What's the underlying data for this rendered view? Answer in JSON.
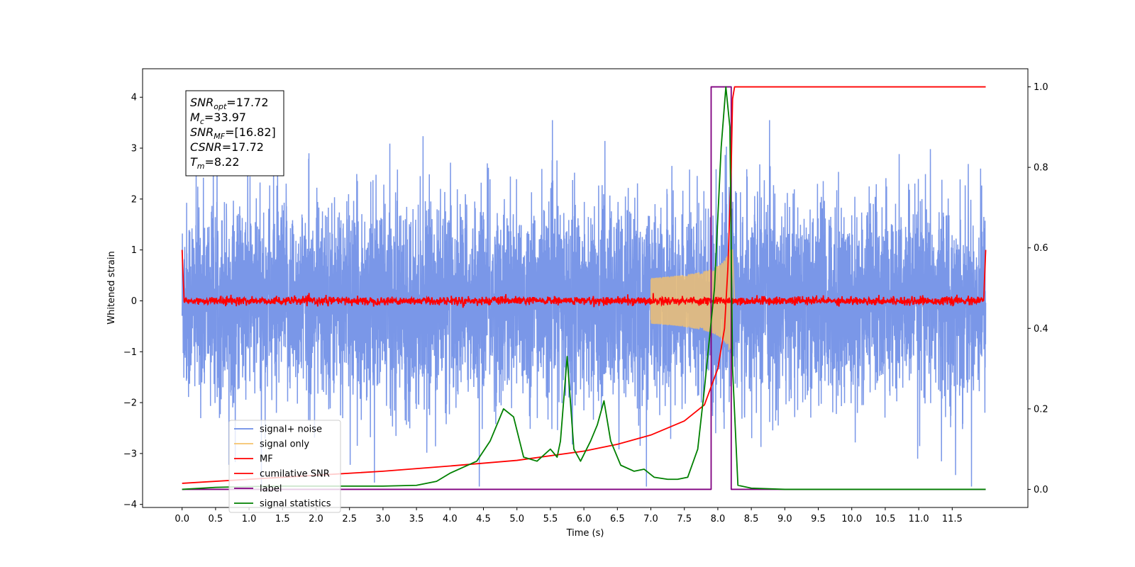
{
  "chart_data": {
    "type": "line",
    "xlabel": "Time (s)",
    "ylabel": "Whitened strain",
    "xlim": [
      -0.59,
      12.63
    ],
    "ylim_left": [
      -4.06,
      4.56
    ],
    "ylim_right": [
      -0.045,
      1.045
    ],
    "x_ticks": [
      "0.0",
      "0.5",
      "1.0",
      "1.5",
      "2.0",
      "2.5",
      "3.0",
      "3.5",
      "4.0",
      "4.5",
      "5.0",
      "5.5",
      "6.0",
      "6.5",
      "7.0",
      "7.5",
      "8.0",
      "8.5",
      "9.0",
      "9.5",
      "10.0",
      "10.5",
      "11.0",
      "11.5"
    ],
    "y_ticks_left": [
      "4",
      "3",
      "2",
      "1",
      "0",
      "−1",
      "−2",
      "−3",
      "−4"
    ],
    "y_ticks_right": [
      "1.0",
      "0.8",
      "0.6",
      "0.4",
      "0.2",
      "0.0"
    ],
    "grid": false,
    "legend_position": "lower left",
    "info_box": {
      "lines": [
        {
          "base": "SNR",
          "sub": "opt",
          "rest": "=17.72"
        },
        {
          "base": "M",
          "sub": "c",
          "rest": "=33.97"
        },
        {
          "base": "SNR",
          "sub": "MF",
          "rest": "=[16.82]"
        },
        {
          "base": "CSNR",
          "sub": "",
          "rest": "=17.72"
        },
        {
          "base": "T",
          "sub": "m",
          "rest": "=8.22"
        }
      ]
    },
    "series": [
      {
        "name": "signal+ noise",
        "color": "#6b8ce6",
        "axis": "left",
        "description_values": {
          "x_range": [
            0.0,
            12.0
          ],
          "typical_range": [
            -2.0,
            2.0
          ],
          "max": 3.55,
          "min": -3.65
        }
      },
      {
        "name": "signal only",
        "color": "#f5c26b",
        "axis": "left",
        "x_range": [
          7.0,
          8.25
        ],
        "amplitude_peak": 1.0
      },
      {
        "name": "MF",
        "color": "#ff0000",
        "axis": "left",
        "x_range": [
          0.0,
          12.0
        ],
        "baseline": 0.0,
        "noise_amplitude": 0.08,
        "start_value": 1.0,
        "end_value": 1.0
      },
      {
        "name": "cumilative SNR",
        "color": "#ff0000",
        "axis": "right",
        "x": [
          0.0,
          1.0,
          2.0,
          3.0,
          4.0,
          5.0,
          6.0,
          6.5,
          7.0,
          7.5,
          7.8,
          8.0,
          8.1,
          8.15,
          8.2,
          8.22,
          8.25,
          12.0
        ],
        "y": [
          0.015,
          0.025,
          0.035,
          0.045,
          0.058,
          0.072,
          0.095,
          0.112,
          0.135,
          0.17,
          0.21,
          0.3,
          0.4,
          0.55,
          0.8,
          0.97,
          1.0,
          1.0
        ]
      },
      {
        "name": "label",
        "color": "#800080",
        "axis": "right",
        "x": [
          0.0,
          7.9,
          7.9,
          8.2,
          8.2,
          12.0
        ],
        "y": [
          0.0,
          0.0,
          1.0,
          1.0,
          0.0,
          0.0
        ]
      },
      {
        "name": "signal statistics",
        "color": "#008000",
        "axis": "right",
        "x": [
          0.0,
          0.3,
          0.5,
          1.0,
          1.5,
          2.0,
          2.5,
          3.0,
          3.5,
          3.8,
          4.0,
          4.2,
          4.4,
          4.6,
          4.8,
          4.95,
          5.1,
          5.3,
          5.5,
          5.6,
          5.65,
          5.75,
          5.85,
          5.95,
          6.1,
          6.2,
          6.3,
          6.4,
          6.55,
          6.75,
          6.9,
          7.05,
          7.25,
          7.4,
          7.55,
          7.7,
          7.8,
          7.95,
          8.05,
          8.12,
          8.18,
          8.22,
          8.3,
          8.5,
          9.0,
          12.0
        ],
        "y": [
          0.0,
          0.003,
          0.005,
          0.007,
          0.008,
          0.008,
          0.008,
          0.008,
          0.01,
          0.02,
          0.04,
          0.055,
          0.07,
          0.12,
          0.2,
          0.18,
          0.08,
          0.07,
          0.1,
          0.08,
          0.12,
          0.33,
          0.1,
          0.07,
          0.12,
          0.16,
          0.22,
          0.12,
          0.06,
          0.045,
          0.05,
          0.03,
          0.025,
          0.025,
          0.03,
          0.1,
          0.25,
          0.5,
          0.85,
          1.0,
          0.9,
          0.3,
          0.01,
          0.003,
          0.0,
          0.0
        ]
      }
    ]
  }
}
